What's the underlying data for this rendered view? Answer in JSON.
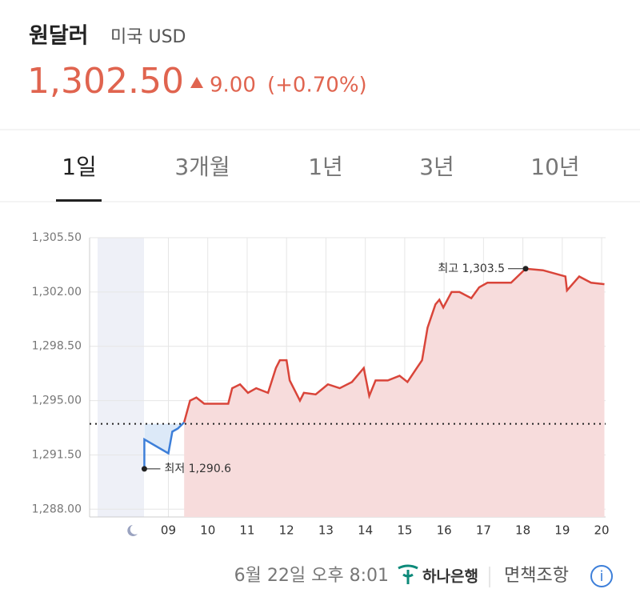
{
  "header": {
    "title": "원달러",
    "subtitle": "미국 USD",
    "price": "1,302.50",
    "change": "9.00",
    "change_pct": "(+0.70%)"
  },
  "tabs": [
    "1일",
    "3개월",
    "1년",
    "3년",
    "10년"
  ],
  "chart_data": {
    "type": "line",
    "xlim": [
      7,
      20.1
    ],
    "xticks": [
      {
        "value": 9,
        "label": "09"
      },
      10,
      11,
      12,
      13,
      14,
      15,
      16,
      17,
      18,
      19,
      20
    ],
    "ylim": [
      1287.5,
      1305.5
    ],
    "yticks": [
      {
        "value": 1288,
        "label": "1,288.00"
      },
      {
        "value": 1291.5,
        "label": "1,291.50"
      },
      {
        "value": 1295,
        "label": "1,295.00"
      },
      {
        "value": 1298.5,
        "label": "1,298.50"
      },
      {
        "value": 1302,
        "label": "1,302.00"
      },
      {
        "value": 1305.5,
        "label": "1,305.50"
      }
    ],
    "grid": true,
    "baseline": 1293.5,
    "series": [
      {
        "color": "#3d7fd9",
        "fill": "#dce9f8",
        "x": [
          8.39,
          8.39,
          9.0,
          9.1,
          9.24,
          9.4
        ],
        "values": [
          1290.6,
          1292.5,
          1291.6,
          1293.0,
          1293.2,
          1293.6
        ]
      },
      {
        "color": "#d9453a",
        "fill": "#f7dcdc",
        "x": [
          9.4,
          9.55,
          9.71,
          9.91,
          10.21,
          10.52,
          10.62,
          10.82,
          11.02,
          11.23,
          11.53,
          11.73,
          11.83,
          12.0,
          12.08,
          12.34,
          12.44,
          12.74,
          13.05,
          13.35,
          13.66,
          13.96,
          14.1,
          14.26,
          14.57,
          14.87,
          15.07,
          15.28,
          15.44,
          15.58,
          15.78,
          15.88,
          15.98,
          16.19,
          16.39,
          16.69,
          16.89,
          17.1,
          17.7,
          18.07,
          18.51,
          19.08,
          19.12,
          19.43,
          19.73,
          20.07
        ],
        "values": [
          1293.6,
          1295.0,
          1295.2,
          1294.8,
          1294.8,
          1294.8,
          1295.8,
          1296.05,
          1295.5,
          1295.8,
          1295.5,
          1297.1,
          1297.6,
          1297.6,
          1296.3,
          1295.0,
          1295.5,
          1295.4,
          1296.05,
          1295.8,
          1296.2,
          1297.1,
          1295.3,
          1296.3,
          1296.3,
          1296.6,
          1296.2,
          1297.0,
          1297.6,
          1299.7,
          1301.2,
          1301.5,
          1301.0,
          1302.0,
          1302.0,
          1301.6,
          1302.3,
          1302.6,
          1302.6,
          1303.5,
          1303.4,
          1303.0,
          1302.1,
          1303.0,
          1302.6,
          1302.5
        ]
      }
    ],
    "annotations": [
      {
        "text": "최저 1,290.6",
        "x": 8.39,
        "value": 1290.6
      },
      {
        "text": "최고 1,303.5",
        "x": 18.07,
        "value": 1303.5
      }
    ]
  },
  "footer": {
    "timestamp": "6월 22일 오후 8:01",
    "provider": "하나은행",
    "disclaimer": "면책조항"
  }
}
